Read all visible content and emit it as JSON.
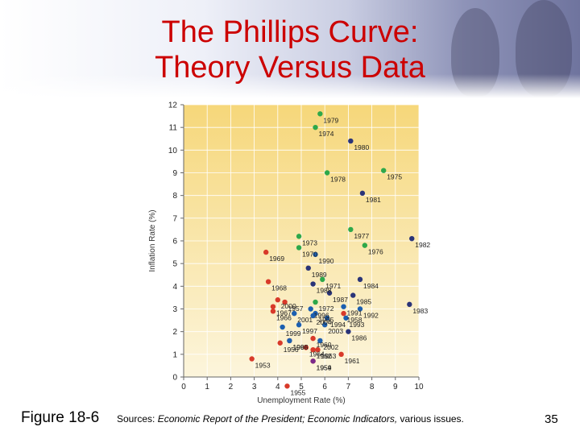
{
  "slide": {
    "title_line1": "The Phillips Curve:",
    "title_line2": "Theory Versus Data",
    "figure_label": "Figure 18-6",
    "sources_prefix": "Sources: ",
    "sources_italic1": "Economic Report of the President; Economic Indicators,",
    "sources_suffix": " various issues.",
    "page_number": "35"
  },
  "colors": {
    "green": "#2ea84a",
    "navy": "#2a3478",
    "red": "#d83a2a",
    "purple": "#7b2a8a",
    "blue": "#1c5fb0",
    "plot_bg_top": "#f6d77a",
    "plot_bg_bottom": "#fcf5dc",
    "title": "#cc0000"
  },
  "chart_data": {
    "type": "scatter",
    "xlabel": "Unemployment Rate (%)",
    "ylabel": "Inflation Rate (%)",
    "xlim": [
      0,
      10
    ],
    "ylim": [
      0,
      12
    ],
    "x_ticks": [
      "0",
      "1",
      "2",
      "3",
      "4",
      "5",
      "6",
      "7",
      "8",
      "9",
      "10"
    ],
    "y_ticks": [
      "0",
      "1",
      "2",
      "3",
      "4",
      "5",
      "6",
      "7",
      "8",
      "9",
      "10",
      "11",
      "12"
    ],
    "grid": true,
    "points": [
      {
        "year": "1979",
        "x": 5.8,
        "y": 11.6,
        "color": "green"
      },
      {
        "year": "1974",
        "x": 5.6,
        "y": 11.0,
        "color": "green"
      },
      {
        "year": "1980",
        "x": 7.1,
        "y": 10.4,
        "color": "navy"
      },
      {
        "year": "1975",
        "x": 8.5,
        "y": 9.1,
        "color": "green"
      },
      {
        "year": "1978",
        "x": 6.1,
        "y": 9.0,
        "color": "green"
      },
      {
        "year": "1981",
        "x": 7.6,
        "y": 8.1,
        "color": "navy"
      },
      {
        "year": "1977",
        "x": 7.1,
        "y": 6.5,
        "color": "green"
      },
      {
        "year": "1973",
        "x": 4.9,
        "y": 6.2,
        "color": "green"
      },
      {
        "year": "1970",
        "x": 4.9,
        "y": 5.7,
        "color": "green"
      },
      {
        "year": "1976",
        "x": 7.7,
        "y": 5.8,
        "color": "green"
      },
      {
        "year": "1982",
        "x": 9.7,
        "y": 6.1,
        "color": "navy"
      },
      {
        "year": "1990",
        "x": 5.6,
        "y": 5.4,
        "color": "blue"
      },
      {
        "year": "1969",
        "x": 3.5,
        "y": 5.5,
        "color": "red"
      },
      {
        "year": "1989",
        "x": 5.3,
        "y": 4.8,
        "color": "navy"
      },
      {
        "year": "1971",
        "x": 5.9,
        "y": 4.3,
        "color": "green"
      },
      {
        "year": "1968",
        "x": 3.6,
        "y": 4.2,
        "color": "red"
      },
      {
        "year": "1984",
        "x": 7.5,
        "y": 4.3,
        "color": "navy"
      },
      {
        "year": "1988",
        "x": 5.5,
        "y": 4.1,
        "color": "navy"
      },
      {
        "year": "1972",
        "x": 5.6,
        "y": 3.3,
        "color": "green"
      },
      {
        "year": "1985",
        "x": 7.2,
        "y": 3.6,
        "color": "navy"
      },
      {
        "year": "1983",
        "x": 9.6,
        "y": 3.2,
        "color": "navy"
      },
      {
        "year": "1996",
        "x": 5.4,
        "y": 3.0,
        "color": "blue"
      },
      {
        "year": "2000",
        "x": 4.0,
        "y": 3.4,
        "color": "red"
      },
      {
        "year": "1995",
        "x": 5.6,
        "y": 2.8,
        "color": "blue"
      },
      {
        "year": "1991",
        "x": 6.8,
        "y": 3.1,
        "color": "blue"
      },
      {
        "year": "1992",
        "x": 7.5,
        "y": 3.0,
        "color": "blue"
      },
      {
        "year": "1957",
        "x": 4.3,
        "y": 3.3,
        "color": "red"
      },
      {
        "year": "1967",
        "x": 3.8,
        "y": 3.1,
        "color": "red"
      },
      {
        "year": "1999",
        "x": 4.2,
        "y": 2.2,
        "color": "blue"
      },
      {
        "year": "2004",
        "x": 5.5,
        "y": 2.7,
        "color": "blue"
      },
      {
        "year": "1987",
        "x": 6.2,
        "y": 3.7,
        "color": "navy"
      },
      {
        "year": "1958",
        "x": 6.8,
        "y": 2.8,
        "color": "red"
      },
      {
        "year": "1994",
        "x": 6.1,
        "y": 2.6,
        "color": "blue"
      },
      {
        "year": "1966",
        "x": 3.8,
        "y": 2.9,
        "color": "red"
      },
      {
        "year": "2002",
        "x": 5.8,
        "y": 1.6,
        "color": "blue"
      },
      {
        "year": "1993",
        "x": 6.9,
        "y": 2.6,
        "color": "blue"
      },
      {
        "year": "1986",
        "x": 7.0,
        "y": 2.0,
        "color": "navy"
      },
      {
        "year": "1965",
        "x": 4.5,
        "y": 1.6,
        "color": "red"
      },
      {
        "year": "2003",
        "x": 6.0,
        "y": 2.3,
        "color": "blue"
      },
      {
        "year": "1998",
        "x": 4.5,
        "y": 1.6,
        "color": "blue"
      },
      {
        "year": "1960",
        "x": 5.5,
        "y": 1.7,
        "color": "red"
      },
      {
        "year": "1997",
        "x": 4.9,
        "y": 2.3,
        "color": "blue"
      },
      {
        "year": "1953",
        "x": 2.9,
        "y": 0.8,
        "color": "red"
      },
      {
        "year": "1956",
        "x": 4.1,
        "y": 1.5,
        "color": "red"
      },
      {
        "year": "1962",
        "x": 5.5,
        "y": 1.2,
        "color": "red"
      },
      {
        "year": "1963",
        "x": 5.7,
        "y": 1.2,
        "color": "red"
      },
      {
        "year": "2001",
        "x": 4.7,
        "y": 2.8,
        "color": "blue"
      },
      {
        "year": "1964",
        "x": 5.2,
        "y": 1.3,
        "color": "red"
      },
      {
        "year": "1961",
        "x": 6.7,
        "y": 1.0,
        "color": "red"
      },
      {
        "year": "1959",
        "x": 5.5,
        "y": 0.7,
        "color": "red"
      },
      {
        "year": "1955",
        "x": 4.4,
        "y": -0.4,
        "color": "red"
      },
      {
        "year": "1954",
        "x": 5.5,
        "y": 0.7,
        "color": "purple"
      }
    ]
  }
}
